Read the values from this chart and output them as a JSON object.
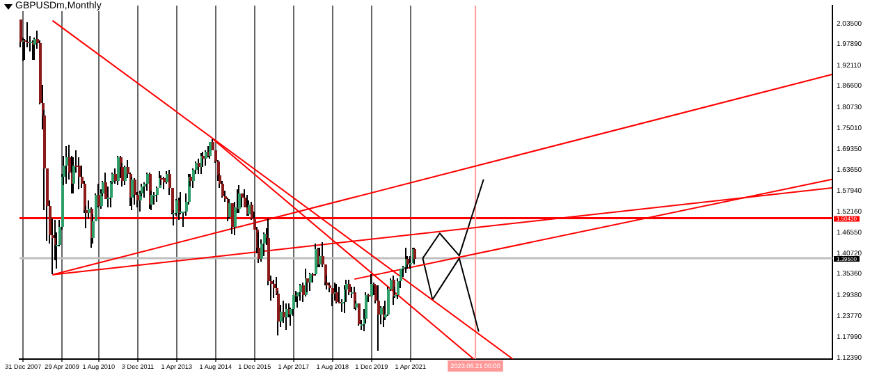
{
  "chart_data": {
    "type": "candlestick",
    "title": "GBPUSDm,Monthly",
    "x": [
      "2007-12",
      "2008-01",
      "2008-02",
      "2008-03",
      "2008-04",
      "2008-05",
      "2008-06",
      "2008-07",
      "2008-08",
      "2008-09",
      "2008-10",
      "2008-11",
      "2008-12",
      "2009-01",
      "2009-02",
      "2009-03",
      "2009-04",
      "2009-05",
      "2009-06",
      "2009-07",
      "2009-08",
      "2009-09",
      "2009-10",
      "2009-11",
      "2009-12",
      "2010-01",
      "2010-02",
      "2010-03",
      "2010-04",
      "2010-05",
      "2010-06",
      "2010-07",
      "2010-08",
      "2010-09",
      "2010-10",
      "2010-11",
      "2010-12",
      "2011-01",
      "2011-02",
      "2011-03",
      "2011-04",
      "2011-05",
      "2011-06",
      "2011-07",
      "2011-08",
      "2011-09",
      "2011-10",
      "2011-11",
      "2011-12",
      "2012-01",
      "2012-02",
      "2012-03",
      "2012-04",
      "2012-05",
      "2012-06",
      "2012-07",
      "2012-08",
      "2012-09",
      "2012-10",
      "2012-11",
      "2012-12",
      "2013-01",
      "2013-02",
      "2013-03",
      "2013-04",
      "2013-05",
      "2013-06",
      "2013-07",
      "2013-08",
      "2013-09",
      "2013-10",
      "2013-11",
      "2013-12",
      "2014-01",
      "2014-02",
      "2014-03",
      "2014-04",
      "2014-05",
      "2014-06",
      "2014-07",
      "2014-08",
      "2014-09",
      "2014-10",
      "2014-11",
      "2014-12",
      "2015-01",
      "2015-02",
      "2015-03",
      "2015-04",
      "2015-05",
      "2015-06",
      "2015-07",
      "2015-08",
      "2015-09",
      "2015-10",
      "2015-11",
      "2015-12",
      "2016-01",
      "2016-02",
      "2016-03",
      "2016-04",
      "2016-05",
      "2016-06",
      "2016-07",
      "2016-08",
      "2016-09",
      "2016-10",
      "2016-11",
      "2016-12",
      "2017-01",
      "2017-02",
      "2017-03",
      "2017-04",
      "2017-05",
      "2017-06",
      "2017-07",
      "2017-08",
      "2017-09",
      "2017-10",
      "2017-11",
      "2017-12",
      "2018-01",
      "2018-02",
      "2018-03",
      "2018-04",
      "2018-05",
      "2018-06",
      "2018-07",
      "2018-08",
      "2018-09",
      "2018-10",
      "2018-11",
      "2018-12",
      "2019-01",
      "2019-02",
      "2019-03",
      "2019-04",
      "2019-05",
      "2019-06",
      "2019-07",
      "2019-08",
      "2019-09",
      "2019-10",
      "2019-11",
      "2019-12",
      "2020-01",
      "2020-02",
      "2020-03",
      "2020-04",
      "2020-05",
      "2020-06",
      "2020-07",
      "2020-08",
      "2020-09",
      "2020-10",
      "2020-11",
      "2020-12",
      "2021-01",
      "2021-02",
      "2021-03",
      "2021-04",
      "2021-05",
      "2021-06"
    ],
    "ohlc": [
      [
        2.045,
        2.046,
        1.969,
        1.984
      ],
      [
        1.984,
        1.998,
        1.934,
        1.989
      ],
      [
        1.989,
        1.993,
        1.936,
        1.986
      ],
      [
        1.986,
        2.04,
        1.97,
        1.985
      ],
      [
        1.985,
        1.999,
        1.96,
        1.985
      ],
      [
        1.985,
        1.99,
        1.936,
        1.979
      ],
      [
        1.979,
        1.998,
        1.935,
        1.992
      ],
      [
        1.992,
        2.016,
        1.967,
        1.981
      ],
      [
        1.981,
        1.988,
        1.815,
        1.82
      ],
      [
        1.82,
        1.868,
        1.745,
        1.786
      ],
      [
        1.786,
        1.8,
        1.525,
        1.639
      ],
      [
        1.639,
        1.64,
        1.442,
        1.537
      ],
      [
        1.537,
        1.551,
        1.435,
        1.459
      ],
      [
        1.459,
        1.502,
        1.35,
        1.449
      ],
      [
        1.449,
        1.498,
        1.39,
        1.43
      ],
      [
        1.43,
        1.466,
        1.365,
        1.433
      ],
      [
        1.433,
        1.501,
        1.429,
        1.479
      ],
      [
        1.479,
        1.625,
        1.473,
        1.616
      ],
      [
        1.616,
        1.674,
        1.593,
        1.646
      ],
      [
        1.646,
        1.699,
        1.599,
        1.67
      ],
      [
        1.67,
        1.704,
        1.61,
        1.629
      ],
      [
        1.629,
        1.675,
        1.571,
        1.599
      ],
      [
        1.599,
        1.669,
        1.571,
        1.647
      ],
      [
        1.647,
        1.688,
        1.628,
        1.646
      ],
      [
        1.646,
        1.669,
        1.583,
        1.617
      ],
      [
        1.617,
        1.646,
        1.588,
        1.6
      ],
      [
        1.6,
        1.604,
        1.518,
        1.525
      ],
      [
        1.525,
        1.536,
        1.478,
        1.518
      ],
      [
        1.518,
        1.552,
        1.502,
        1.53
      ],
      [
        1.53,
        1.534,
        1.423,
        1.451
      ],
      [
        1.451,
        1.514,
        1.435,
        1.495
      ],
      [
        1.495,
        1.572,
        1.495,
        1.568
      ],
      [
        1.568,
        1.599,
        1.535,
        1.536
      ],
      [
        1.536,
        1.584,
        1.531,
        1.571
      ],
      [
        1.571,
        1.605,
        1.565,
        1.603
      ],
      [
        1.603,
        1.63,
        1.555,
        1.557
      ],
      [
        1.557,
        1.59,
        1.535,
        1.559
      ],
      [
        1.559,
        1.606,
        1.535,
        1.602
      ],
      [
        1.602,
        1.628,
        1.6,
        1.625
      ],
      [
        1.625,
        1.64,
        1.597,
        1.604
      ],
      [
        1.604,
        1.674,
        1.594,
        1.67
      ],
      [
        1.67,
        1.675,
        1.612,
        1.644
      ],
      [
        1.644,
        1.655,
        1.591,
        1.605
      ],
      [
        1.605,
        1.646,
        1.595,
        1.644
      ],
      [
        1.644,
        1.662,
        1.612,
        1.624
      ],
      [
        1.624,
        1.627,
        1.539,
        1.56
      ],
      [
        1.56,
        1.617,
        1.527,
        1.61
      ],
      [
        1.61,
        1.613,
        1.542,
        1.569
      ],
      [
        1.569,
        1.577,
        1.534,
        1.554
      ],
      [
        1.554,
        1.578,
        1.524,
        1.572
      ],
      [
        1.572,
        1.599,
        1.564,
        1.592
      ],
      [
        1.592,
        1.603,
        1.56,
        1.6
      ],
      [
        1.6,
        1.63,
        1.58,
        1.624
      ],
      [
        1.624,
        1.63,
        1.53,
        1.542
      ],
      [
        1.542,
        1.578,
        1.527,
        1.568
      ],
      [
        1.568,
        1.577,
        1.54,
        1.568
      ],
      [
        1.568,
        1.59,
        1.549,
        1.587
      ],
      [
        1.587,
        1.631,
        1.585,
        1.615
      ],
      [
        1.615,
        1.62,
        1.593,
        1.613
      ],
      [
        1.613,
        1.617,
        1.583,
        1.602
      ],
      [
        1.602,
        1.631,
        1.6,
        1.625
      ],
      [
        1.625,
        1.638,
        1.568,
        1.586
      ],
      [
        1.586,
        1.587,
        1.513,
        1.517
      ],
      [
        1.517,
        1.525,
        1.483,
        1.519
      ],
      [
        1.519,
        1.555,
        1.511,
        1.553
      ],
      [
        1.553,
        1.56,
        1.499,
        1.52
      ],
      [
        1.52,
        1.575,
        1.513,
        1.521
      ],
      [
        1.521,
        1.524,
        1.481,
        1.521
      ],
      [
        1.521,
        1.572,
        1.511,
        1.55
      ],
      [
        1.55,
        1.625,
        1.542,
        1.619
      ],
      [
        1.619,
        1.626,
        1.59,
        1.604
      ],
      [
        1.604,
        1.639,
        1.586,
        1.637
      ],
      [
        1.637,
        1.66,
        1.623,
        1.656
      ],
      [
        1.656,
        1.667,
        1.623,
        1.643
      ],
      [
        1.643,
        1.682,
        1.625,
        1.675
      ],
      [
        1.675,
        1.684,
        1.644,
        1.667
      ],
      [
        1.667,
        1.689,
        1.647,
        1.687
      ],
      [
        1.687,
        1.699,
        1.669,
        1.674
      ],
      [
        1.674,
        1.712,
        1.666,
        1.711
      ],
      [
        1.711,
        1.719,
        1.688,
        1.688
      ],
      [
        1.688,
        1.691,
        1.654,
        1.659
      ],
      [
        1.659,
        1.664,
        1.605,
        1.62
      ],
      [
        1.62,
        1.626,
        1.588,
        1.6
      ],
      [
        1.6,
        1.604,
        1.559,
        1.564
      ],
      [
        1.564,
        1.579,
        1.549,
        1.558
      ],
      [
        1.558,
        1.559,
        1.495,
        1.506
      ],
      [
        1.506,
        1.555,
        1.503,
        1.544
      ],
      [
        1.544,
        1.546,
        1.463,
        1.482
      ],
      [
        1.482,
        1.55,
        1.457,
        1.534
      ],
      [
        1.534,
        1.582,
        1.517,
        1.528
      ],
      [
        1.528,
        1.593,
        1.517,
        1.571
      ],
      [
        1.571,
        1.573,
        1.533,
        1.561
      ],
      [
        1.561,
        1.582,
        1.533,
        1.534
      ],
      [
        1.534,
        1.566,
        1.511,
        1.513
      ],
      [
        1.513,
        1.551,
        1.511,
        1.543
      ],
      [
        1.543,
        1.548,
        1.501,
        1.504
      ],
      [
        1.504,
        1.524,
        1.474,
        1.474
      ],
      [
        1.474,
        1.48,
        1.408,
        1.424
      ],
      [
        1.424,
        1.467,
        1.383,
        1.392
      ],
      [
        1.392,
        1.446,
        1.384,
        1.436
      ],
      [
        1.436,
        1.464,
        1.4,
        1.461
      ],
      [
        1.461,
        1.477,
        1.433,
        1.449
      ],
      [
        1.449,
        1.502,
        1.322,
        1.331
      ],
      [
        1.331,
        1.348,
        1.28,
        1.324
      ],
      [
        1.324,
        1.337,
        1.286,
        1.313
      ],
      [
        1.313,
        1.344,
        1.296,
        1.298
      ],
      [
        1.298,
        1.306,
        1.184,
        1.224
      ],
      [
        1.224,
        1.267,
        1.209,
        1.248
      ],
      [
        1.248,
        1.278,
        1.22,
        1.234
      ],
      [
        1.234,
        1.271,
        1.199,
        1.258
      ],
      [
        1.258,
        1.271,
        1.235,
        1.241
      ],
      [
        1.241,
        1.261,
        1.211,
        1.255
      ],
      [
        1.255,
        1.296,
        1.237,
        1.295
      ],
      [
        1.295,
        1.305,
        1.277,
        1.289
      ],
      [
        1.289,
        1.303,
        1.259,
        1.303
      ],
      [
        1.303,
        1.325,
        1.281,
        1.32
      ],
      [
        1.32,
        1.327,
        1.277,
        1.293
      ],
      [
        1.293,
        1.366,
        1.291,
        1.34
      ],
      [
        1.34,
        1.341,
        1.303,
        1.328
      ],
      [
        1.328,
        1.355,
        1.307,
        1.352
      ],
      [
        1.352,
        1.355,
        1.33,
        1.35
      ],
      [
        1.35,
        1.435,
        1.346,
        1.419
      ],
      [
        1.419,
        1.422,
        1.371,
        1.377
      ],
      [
        1.377,
        1.424,
        1.371,
        1.402
      ],
      [
        1.402,
        1.438,
        1.371,
        1.377
      ],
      [
        1.377,
        1.378,
        1.32,
        1.33
      ],
      [
        1.33,
        1.347,
        1.31,
        1.32
      ],
      [
        1.32,
        1.329,
        1.301,
        1.312
      ],
      [
        1.312,
        1.315,
        1.266,
        1.297
      ],
      [
        1.297,
        1.33,
        1.279,
        1.303
      ],
      [
        1.303,
        1.326,
        1.27,
        1.276
      ],
      [
        1.276,
        1.318,
        1.272,
        1.275
      ],
      [
        1.275,
        1.284,
        1.248,
        1.275
      ],
      [
        1.275,
        1.322,
        1.244,
        1.311
      ],
      [
        1.311,
        1.335,
        1.277,
        1.326
      ],
      [
        1.326,
        1.338,
        1.295,
        1.303
      ],
      [
        1.303,
        1.318,
        1.287,
        1.304
      ],
      [
        1.304,
        1.318,
        1.256,
        1.262
      ],
      [
        1.262,
        1.278,
        1.251,
        1.27
      ],
      [
        1.27,
        1.272,
        1.212,
        1.215
      ],
      [
        1.215,
        1.228,
        1.201,
        1.216
      ],
      [
        1.216,
        1.258,
        1.196,
        1.229
      ],
      [
        1.229,
        1.301,
        1.22,
        1.295
      ],
      [
        1.295,
        1.299,
        1.277,
        1.292
      ],
      [
        1.292,
        1.351,
        1.29,
        1.325
      ],
      [
        1.325,
        1.329,
        1.295,
        1.32
      ],
      [
        1.32,
        1.321,
        1.273,
        1.281
      ],
      [
        1.281,
        1.32,
        1.141,
        1.242
      ],
      [
        1.242,
        1.264,
        1.216,
        1.259
      ],
      [
        1.259,
        1.265,
        1.208,
        1.235
      ],
      [
        1.235,
        1.281,
        1.225,
        1.24
      ],
      [
        1.24,
        1.317,
        1.239,
        1.309
      ],
      [
        1.309,
        1.339,
        1.305,
        1.337
      ],
      [
        1.337,
        1.348,
        1.268,
        1.292
      ],
      [
        1.292,
        1.318,
        1.286,
        1.295
      ],
      [
        1.295,
        1.34,
        1.285,
        1.333
      ],
      [
        1.333,
        1.367,
        1.314,
        1.367
      ],
      [
        1.367,
        1.376,
        1.345,
        1.37
      ],
      [
        1.37,
        1.424,
        1.356,
        1.393
      ],
      [
        1.393,
        1.401,
        1.368,
        1.378
      ],
      [
        1.378,
        1.401,
        1.367,
        1.381
      ],
      [
        1.381,
        1.425,
        1.38,
        1.421
      ],
      [
        1.421,
        1.425,
        1.379,
        1.395
      ]
    ],
    "series": [
      {
        "type": "line",
        "color": "#ff0000",
        "x": [
          "2009-01",
          "2024-10"
        ],
        "values": [
          2.043,
          1.12
        ]
      },
      {
        "type": "line",
        "color": "#ff0000",
        "x": [
          "2014-07",
          "2023-06"
        ],
        "values": [
          1.719,
          1.12
        ]
      },
      {
        "type": "line",
        "color": "#ff0000",
        "x": [
          "2009-01",
          "2035-09"
        ],
        "values": [
          1.35,
          1.896
        ]
      },
      {
        "type": "line",
        "color": "#ff0000",
        "x": [
          "2009-01",
          "2035-09"
        ],
        "values": [
          1.35,
          1.587
        ]
      },
      {
        "type": "line",
        "color": "#ff0000",
        "x": [
          "2019-05",
          "2035-09"
        ],
        "values": [
          1.338,
          1.61
        ]
      },
      {
        "type": "line",
        "color": "#000000",
        "x": [
          "2021-09",
          "2022-04",
          "2022-12",
          "2023-10"
        ],
        "values": [
          1.395,
          1.463,
          1.402,
          1.61
        ]
      },
      {
        "type": "line",
        "color": "#000000",
        "x": [
          "2021-09",
          "2022-01",
          "2022-12",
          "2023-08"
        ],
        "values": [
          1.395,
          1.282,
          1.395,
          1.195
        ]
      }
    ],
    "xlim": [
      "2007-11-15",
      "2035-09-07"
    ],
    "xticks": [
      {
        "value": "2007-12-31",
        "label": "31 Dec 2007"
      },
      {
        "value": "2009-04-29",
        "label": "29 Apr 2009"
      },
      {
        "value": "2010-08-01",
        "label": "1 Aug 2010"
      },
      {
        "value": "2011-12-03",
        "label": "3 Dec 2011"
      },
      {
        "value": "2013-04-01",
        "label": "1 Apr 2013"
      },
      {
        "value": "2014-08-01",
        "label": "1 Aug 2014"
      },
      {
        "value": "2015-12-01",
        "label": "1 Dec 2015"
      },
      {
        "value": "2017-04-01",
        "label": "1 Apr 2017"
      },
      {
        "value": "2018-08-01",
        "label": "1 Aug 2018"
      },
      {
        "value": "2019-12-01",
        "label": "1 Dec 2019"
      },
      {
        "value": "2021-04-01",
        "label": "1 Apr 2021"
      }
    ],
    "ylim": [
      1.12,
      2.084
    ],
    "yticks": [
      {
        "value": 1.1239,
        "label": "1.12390"
      },
      {
        "value": 1.1799,
        "label": "1.17990"
      },
      {
        "value": 1.2377,
        "label": "1.23770"
      },
      {
        "value": 1.2938,
        "label": "1.29380"
      },
      {
        "value": 1.3536,
        "label": "1.35360"
      },
      {
        "value": 1.4072,
        "label": "1.40720"
      },
      {
        "value": 1.4655,
        "label": "1.46550"
      },
      {
        "value": 1.5216,
        "label": "1.52160"
      },
      {
        "value": 1.5794,
        "label": "1.57940"
      },
      {
        "value": 1.6365,
        "label": "1.63650"
      },
      {
        "value": 1.6935,
        "label": "1.69350"
      },
      {
        "value": 1.7501,
        "label": "1.75010"
      },
      {
        "value": 1.8073,
        "label": "1.80730"
      },
      {
        "value": 1.866,
        "label": "1.86600"
      },
      {
        "value": 1.9211,
        "label": "1.92110"
      },
      {
        "value": 1.9789,
        "label": "1.97890"
      },
      {
        "value": 2.035,
        "label": "2.03500"
      }
    ],
    "ref_lines": [
      {
        "axis": "y",
        "value": 1.5043,
        "label": "1.50430",
        "color": "#ff0000"
      },
      {
        "axis": "y",
        "value": 1.395,
        "label": "1.39500",
        "color": "#c0c0c0"
      },
      {
        "axis": "x",
        "value": "2023-06-21",
        "label": "2023.06.21 00:00",
        "color": "#ff9999"
      }
    ],
    "grid": "x",
    "legend": false
  }
}
